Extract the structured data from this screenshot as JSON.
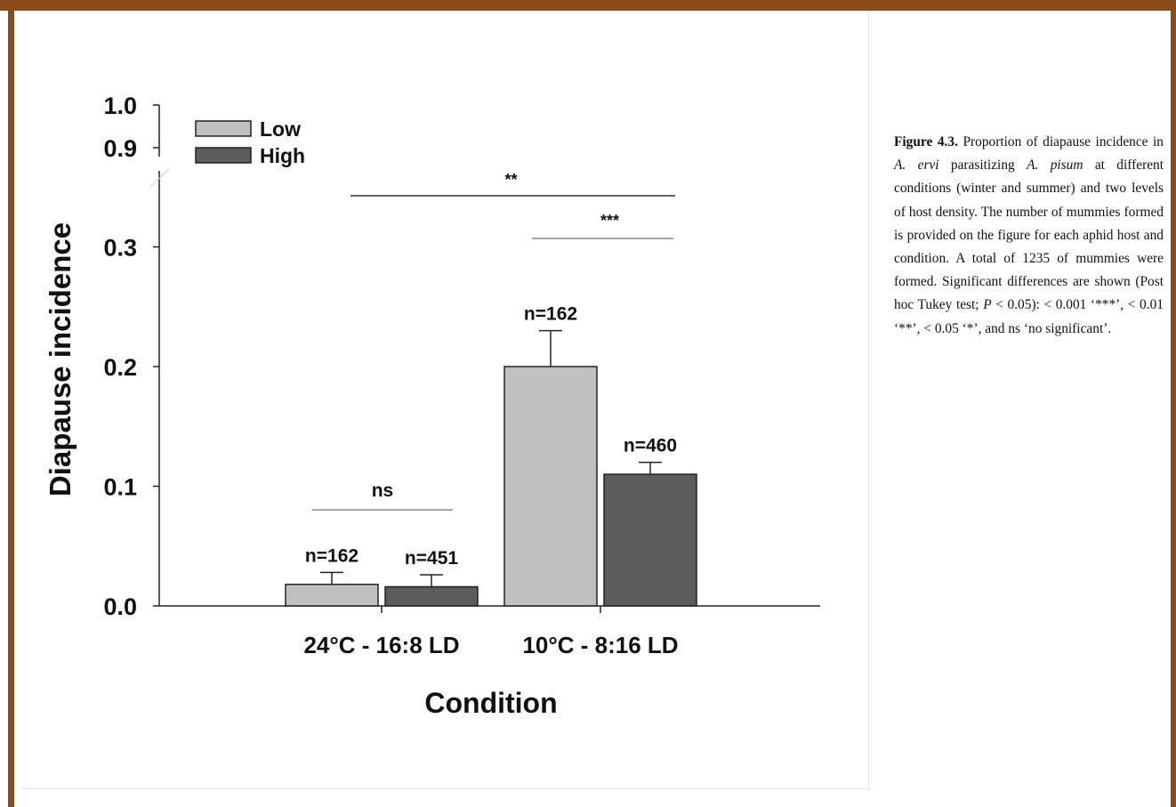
{
  "chart_data": {
    "type": "bar",
    "xlabel": "Condition",
    "ylabel": "Diapause incidence",
    "categories": [
      "24°C - 16:8 LD",
      "10°C - 8:16 LD"
    ],
    "series": [
      {
        "name": "Low",
        "values": [
          0.018,
          0.2
        ],
        "error": [
          0.01,
          0.03
        ],
        "n": [
          "n=162",
          "n=162"
        ],
        "color": "#c0c0c0"
      },
      {
        "name": "High",
        "values": [
          0.016,
          0.11
        ],
        "error": [
          0.01,
          0.01
        ],
        "n": [
          "n=451",
          "n=460"
        ],
        "color": "#5c5c5c"
      }
    ],
    "yticks": [
      "0.0",
      "0.1",
      "0.2",
      "0.3",
      "0.9",
      "1.0"
    ],
    "y_axis_break": [
      0.33,
      0.88
    ],
    "ylim": [
      0,
      1.0
    ],
    "legend_position": "top-left",
    "significance": [
      {
        "label": "ns",
        "between": "Low vs High, 24°C - 16:8 LD"
      },
      {
        "label": "***",
        "between": "Low vs High, 10°C - 8:16 LD"
      },
      {
        "label": "**",
        "between": "24°C - 16:8 LD vs 10°C - 8:16 LD"
      }
    ]
  },
  "caption": {
    "figure_label": "Figure 4.3.",
    "part1": " Proportion of diapause incidence in ",
    "species1": "A. ervi",
    "part2": " parasitizing ",
    "species2": "A. pisum",
    "part3": " at different conditions (winter and summer) and two levels of host density. The number of mummies formed is provided on the figure for each aphid host and condition. A total of 1235 of mummies were formed. Significant differences are shown (Post hoc Tukey test; ",
    "p_symbol": "P",
    "part4": " < 0.05):  < 0.001 ‘***’, < 0.01 ‘**’, < 0.05 ‘*’, and ns ‘no significant’."
  }
}
